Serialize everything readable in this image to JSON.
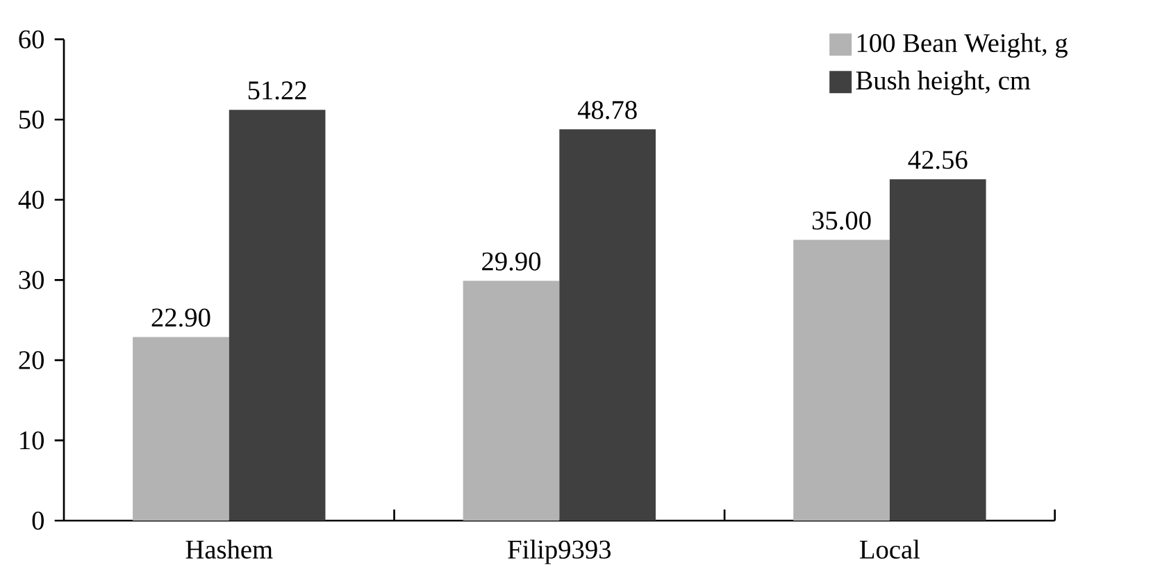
{
  "chart_data": {
    "type": "bar",
    "categories": [
      "Hashem",
      "Filip9393",
      "Local"
    ],
    "series": [
      {
        "name": "100 Bean Weight, g",
        "color": "#b3b3b3",
        "values": [
          22.9,
          29.9,
          35.0
        ],
        "value_labels": [
          "22.90",
          "29.90",
          "35.00"
        ]
      },
      {
        "name": "Bush height, cm",
        "color": "#404040",
        "values": [
          51.22,
          48.78,
          42.56
        ],
        "value_labels": [
          "51.22",
          "48.78",
          "42.56"
        ]
      }
    ],
    "ylim": [
      0,
      60
    ],
    "yticks": [
      0,
      10,
      20,
      30,
      40,
      50,
      60
    ],
    "legend": "top right",
    "grid": false
  }
}
